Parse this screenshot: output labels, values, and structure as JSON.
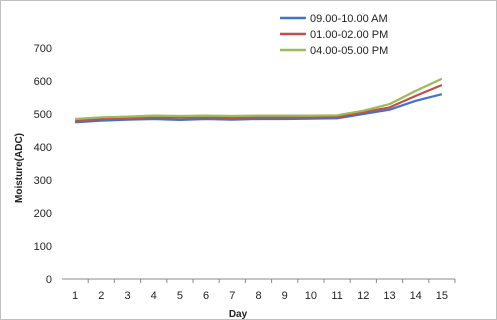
{
  "chart_data": {
    "type": "line",
    "title": "",
    "xlabel": "Day",
    "ylabel": "Moisture(ADC)",
    "x": [
      1,
      2,
      3,
      4,
      5,
      6,
      7,
      8,
      9,
      10,
      11,
      12,
      13,
      14,
      15
    ],
    "ylim": [
      0,
      700
    ],
    "yticks": [
      0,
      100,
      200,
      300,
      400,
      500,
      600,
      700
    ],
    "grid": false,
    "legend_position": "top-right",
    "series": [
      {
        "name": "09.00-10.00 AM",
        "color": "#4472C4",
        "values": [
          475,
          480,
          483,
          485,
          482,
          485,
          483,
          485,
          485,
          486,
          487,
          500,
          513,
          540,
          560
        ]
      },
      {
        "name": "01.00-02.00 PM",
        "color": "#C0504D",
        "values": [
          480,
          485,
          487,
          490,
          489,
          490,
          488,
          490,
          490,
          490,
          491,
          505,
          520,
          555,
          588
        ]
      },
      {
        "name": "04.00-05.00 PM",
        "color": "#9BBB59",
        "values": [
          485,
          490,
          492,
          495,
          494,
          495,
          494,
          495,
          495,
          495,
          496,
          510,
          530,
          570,
          607
        ]
      }
    ]
  }
}
